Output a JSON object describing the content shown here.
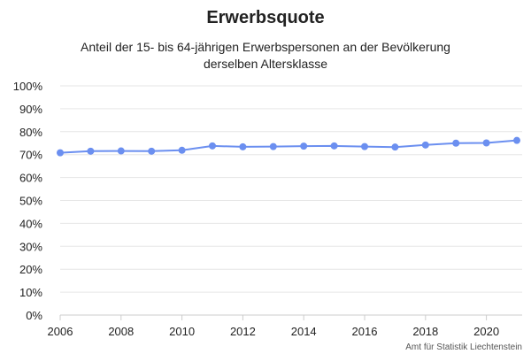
{
  "chart_data": {
    "type": "line",
    "title": "Erwerbsquote",
    "subtitle": [
      "Anteil der 15- bis 64-jährigen Erwerbspersonen an der Bevölkerung",
      "derselben Altersklasse"
    ],
    "source": "Amt für Statistik Liechtenstein",
    "x": [
      2006,
      2007,
      2008,
      2009,
      2010,
      2011,
      2012,
      2013,
      2014,
      2015,
      2016,
      2017,
      2018,
      2019,
      2020,
      2021
    ],
    "values": [
      70.8,
      71.5,
      71.6,
      71.5,
      71.9,
      73.8,
      73.4,
      73.5,
      73.7,
      73.8,
      73.5,
      73.3,
      74.2,
      75.0,
      75.1,
      76.2
    ],
    "xticks": [
      "2006",
      "2008",
      "2010",
      "2012",
      "2014",
      "2016",
      "2018",
      "2020"
    ],
    "yticks": [
      "0%",
      "10%",
      "20%",
      "30%",
      "40%",
      "50%",
      "60%",
      "70%",
      "80%",
      "90%",
      "100%"
    ],
    "ylim": [
      0,
      100
    ],
    "xlim": [
      2006,
      2021
    ],
    "grid": true,
    "colors": {
      "line": "#6b8ff0",
      "grid": "#e6e6e6",
      "axis": "#cccccc",
      "text": "#222222"
    }
  }
}
